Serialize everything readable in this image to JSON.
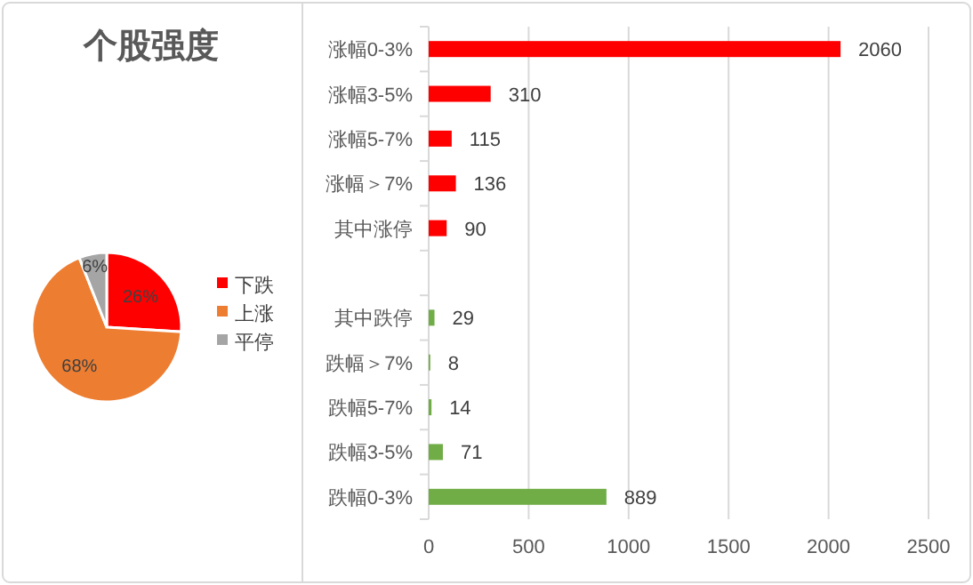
{
  "chart_data": [
    {
      "type": "pie",
      "title": "个股强度",
      "categories": [
        "下跌",
        "上涨",
        "平停"
      ],
      "values": [
        26,
        68,
        6
      ],
      "colors": [
        "#ff0000",
        "#ed7d31",
        "#a5a5a5"
      ],
      "value_labels": [
        "26%",
        "68%",
        "6%"
      ],
      "legend": "right"
    },
    {
      "type": "bar",
      "orientation": "horizontal",
      "categories": [
        "涨幅0-3%",
        "涨幅3-5%",
        "涨幅5-7%",
        "涨幅＞7%",
        "其中涨停",
        null,
        "其中跌停",
        "跌幅＞7%",
        "跌幅5-7%",
        "跌幅3-5%",
        "跌幅0-3%"
      ],
      "series": [
        {
          "color": "#ff0000",
          "values": [
            2060,
            310,
            115,
            136,
            90,
            null,
            null,
            null,
            null,
            null,
            null
          ]
        },
        {
          "color": "#70ad47",
          "values": [
            null,
            null,
            null,
            null,
            null,
            null,
            29,
            8,
            14,
            71,
            889
          ]
        }
      ],
      "xlim": [
        0,
        2500
      ],
      "xticks": [
        0,
        500,
        1000,
        1500,
        2000,
        2500
      ],
      "grid": "x",
      "data_labels": true
    }
  ]
}
